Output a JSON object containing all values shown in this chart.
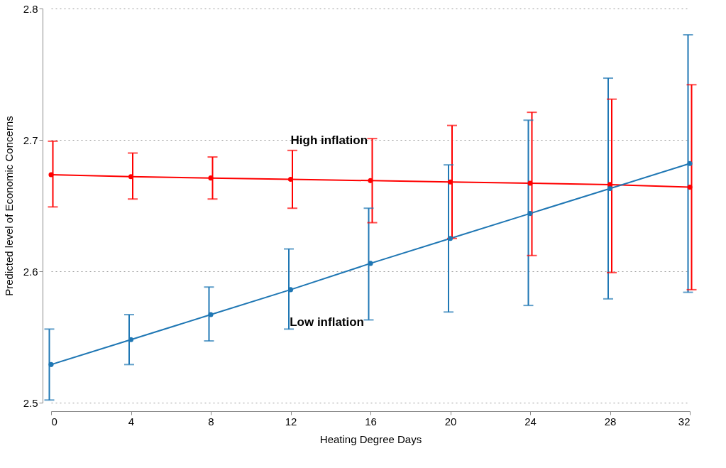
{
  "chart_data": {
    "type": "line",
    "xlabel": "Heating Degree Days",
    "ylabel": "Predicted level of Economic Concerns",
    "x": [
      0,
      4,
      8,
      12,
      16,
      20,
      24,
      28,
      32
    ],
    "xlim": [
      0,
      32
    ],
    "xticks": [
      0,
      4,
      8,
      12,
      16,
      20,
      24,
      28,
      32
    ],
    "ylim": [
      2.5,
      2.8
    ],
    "yticks": [
      2.5,
      2.6,
      2.7,
      2.8
    ],
    "grid": "y",
    "marker": "circle",
    "line_style": "solid",
    "series": [
      {
        "name": "High inflation",
        "color": "#ff0000",
        "values": [
          2.6735,
          2.672,
          2.671,
          2.67,
          2.669,
          2.668,
          2.667,
          2.666,
          2.664
        ],
        "errors": [
          [
            2.649,
            2.699
          ],
          [
            2.655,
            2.69
          ],
          [
            2.655,
            2.687
          ],
          [
            2.648,
            2.692
          ],
          [
            2.637,
            2.701
          ],
          [
            2.625,
            2.711
          ],
          [
            2.612,
            2.721
          ],
          [
            2.599,
            2.731
          ],
          [
            2.586,
            2.742
          ]
        ]
      },
      {
        "name": "Low inflation",
        "color": "#1f77b4",
        "values": [
          2.529,
          2.548,
          2.567,
          2.586,
          2.606,
          2.625,
          2.644,
          2.663,
          2.682
        ],
        "errors": [
          [
            2.502,
            2.556
          ],
          [
            2.529,
            2.567
          ],
          [
            2.547,
            2.588
          ],
          [
            2.556,
            2.617
          ],
          [
            2.563,
            2.648
          ],
          [
            2.569,
            2.681
          ],
          [
            2.574,
            2.715
          ],
          [
            2.579,
            2.747
          ],
          [
            2.584,
            2.78
          ]
        ]
      }
    ]
  }
}
